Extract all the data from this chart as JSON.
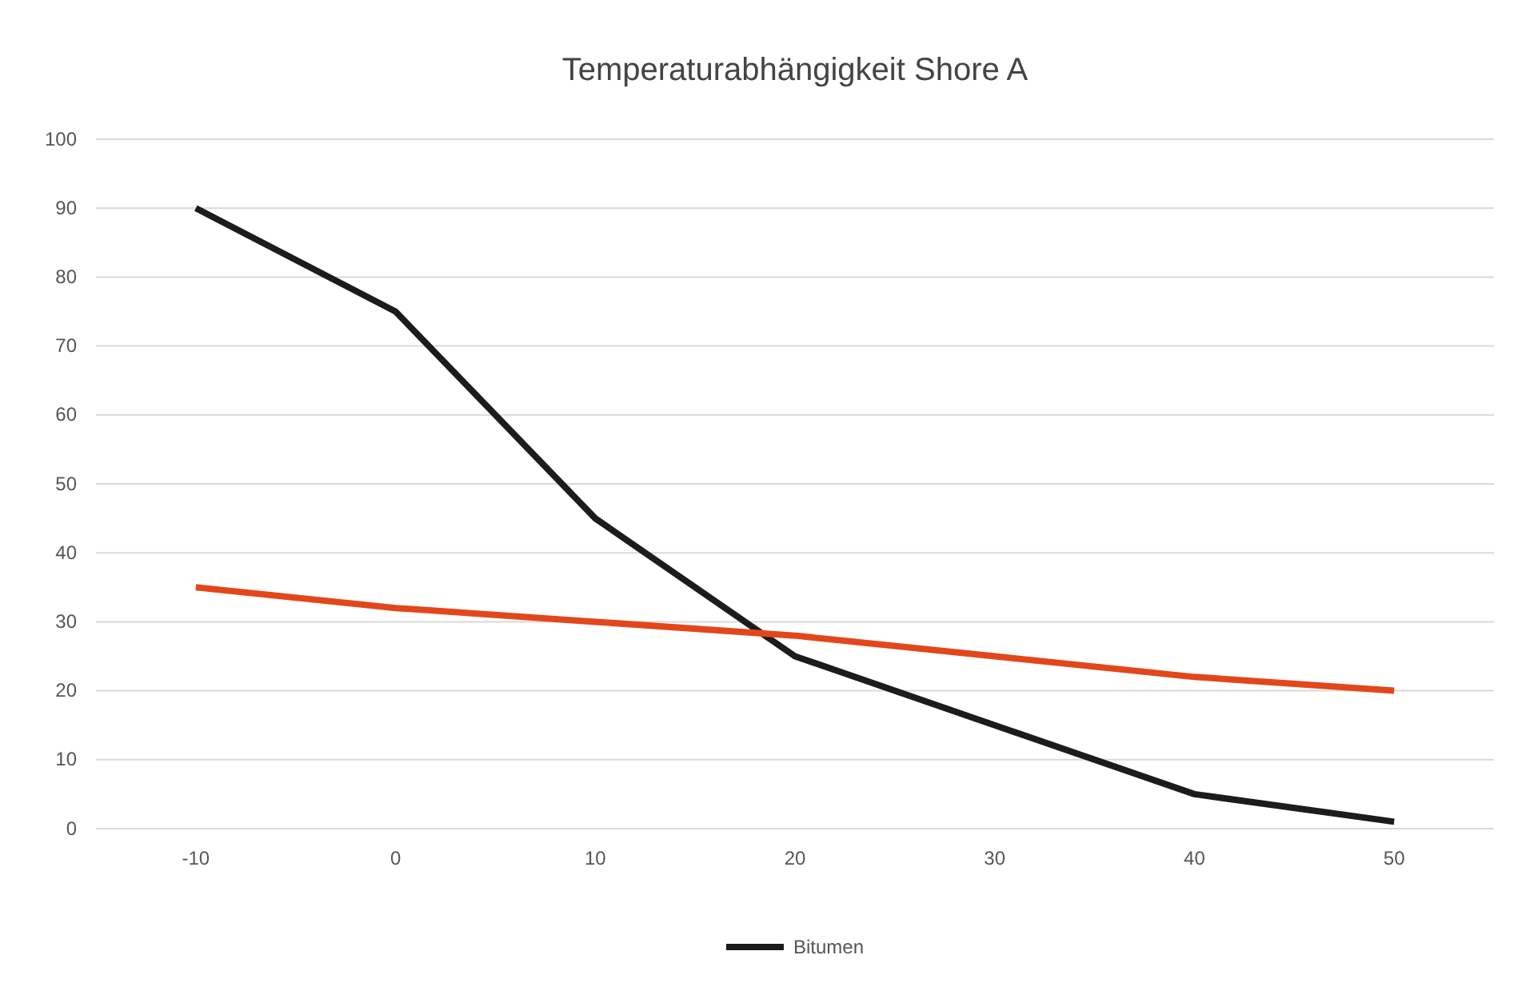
{
  "chart_data": {
    "type": "line",
    "title": "Temperaturabhängigkeit Shore A",
    "categories": [
      "-10",
      "0",
      "10",
      "20",
      "30",
      "40",
      "50"
    ],
    "series": [
      {
        "name": "Bitumen",
        "color": "#1c1c1c",
        "values": [
          90,
          75,
          45,
          25,
          15,
          5,
          1
        ]
      },
      {
        "color": "#e2471c",
        "values": [
          35,
          32,
          30,
          28,
          25,
          22,
          20
        ]
      }
    ],
    "ylim": [
      0,
      100
    ],
    "yticks": [
      0,
      10,
      20,
      30,
      40,
      50,
      60,
      70,
      80,
      90,
      100
    ],
    "grid": "y",
    "legend": "bottom",
    "marker": "none",
    "line_style": "solid"
  }
}
